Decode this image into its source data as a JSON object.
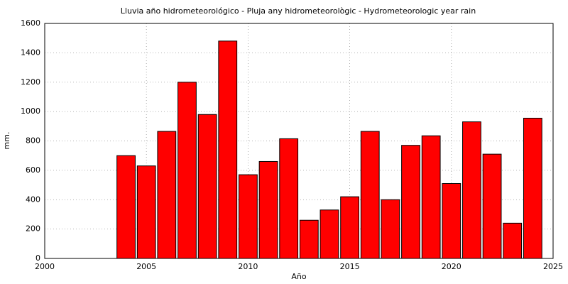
{
  "chart_data": {
    "type": "bar",
    "title": "Lluvia año hidrometeorológico - Pluja any hidrometeorològic - Hydrometeorologic year rain",
    "x_label": "Año",
    "y_label": "mm.",
    "x": [
      2004,
      2005,
      2006,
      2007,
      2008,
      2009,
      2010,
      2011,
      2012,
      2013,
      2014,
      2015,
      2016,
      2017,
      2018,
      2019,
      2020,
      2021,
      2022,
      2023,
      2024
    ],
    "values": [
      700,
      630,
      865,
      1200,
      980,
      1480,
      570,
      660,
      815,
      260,
      330,
      420,
      865,
      400,
      770,
      835,
      510,
      930,
      710,
      240,
      955
    ],
    "color": "#ff0000",
    "xlim": [
      2000,
      2025
    ],
    "xticks": [
      2000,
      2005,
      2010,
      2015,
      2020,
      2025
    ],
    "ylim": [
      0,
      1600
    ],
    "yticks": [
      0,
      200,
      400,
      600,
      800,
      1000,
      1200,
      1400,
      1600
    ],
    "grid": true
  }
}
